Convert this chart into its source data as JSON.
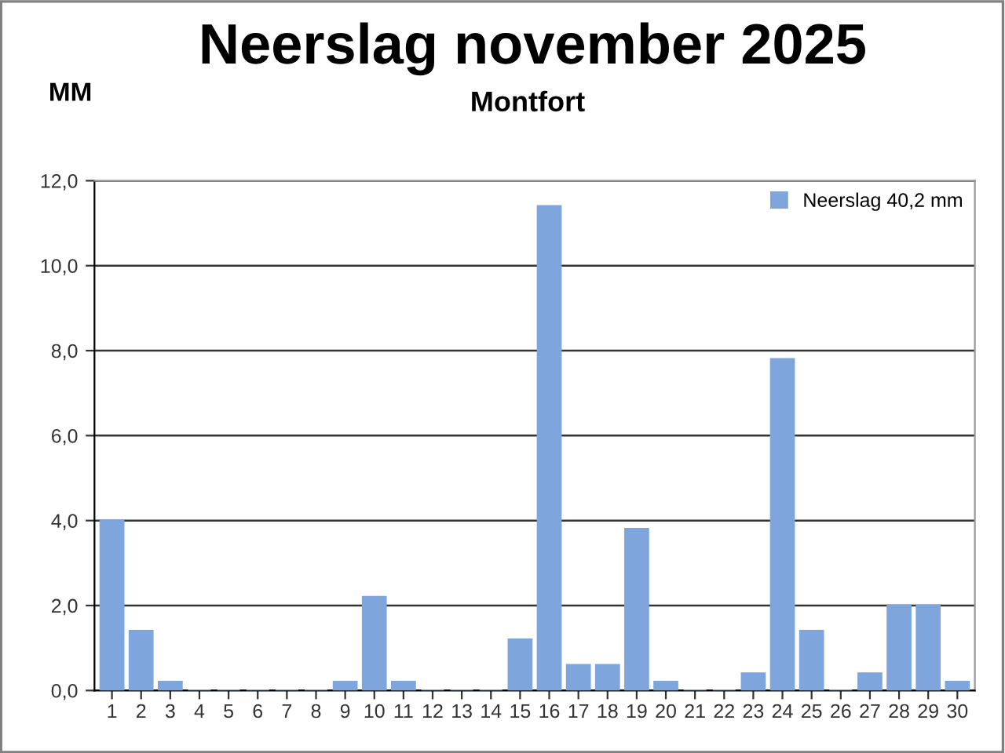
{
  "chart_data": {
    "type": "bar",
    "title": "Neerslag november 2025",
    "subtitle": "Montfort",
    "ylabel": "MM",
    "categories": [
      "1",
      "2",
      "3",
      "4",
      "5",
      "6",
      "7",
      "8",
      "9",
      "10",
      "11",
      "12",
      "13",
      "14",
      "15",
      "16",
      "17",
      "18",
      "19",
      "20",
      "21",
      "22",
      "23",
      "24",
      "25",
      "26",
      "27",
      "28",
      "29",
      "30"
    ],
    "series": [
      {
        "name": "Neerslag 40,2 mm",
        "color": "#7ea6dc",
        "values": [
          4.0,
          1.4,
          0.2,
          0,
          0,
          0,
          0,
          0,
          0.2,
          2.2,
          0.2,
          0,
          0,
          0,
          1.2,
          11.4,
          0.6,
          0.6,
          3.8,
          0.2,
          0,
          0,
          0.4,
          7.8,
          1.4,
          0,
          0.4,
          2.0,
          2.0,
          0.2
        ]
      }
    ],
    "ylim": [
      0,
      12
    ],
    "yticks": [
      {
        "value": 0,
        "label": "0,0"
      },
      {
        "value": 2,
        "label": "2,0"
      },
      {
        "value": 4,
        "label": "4,0"
      },
      {
        "value": 6,
        "label": "6,0"
      },
      {
        "value": 8,
        "label": "8,0"
      },
      {
        "value": 10,
        "label": "10,0"
      },
      {
        "value": 12,
        "label": "12,0"
      }
    ],
    "grid": "y",
    "legend": "top right"
  }
}
